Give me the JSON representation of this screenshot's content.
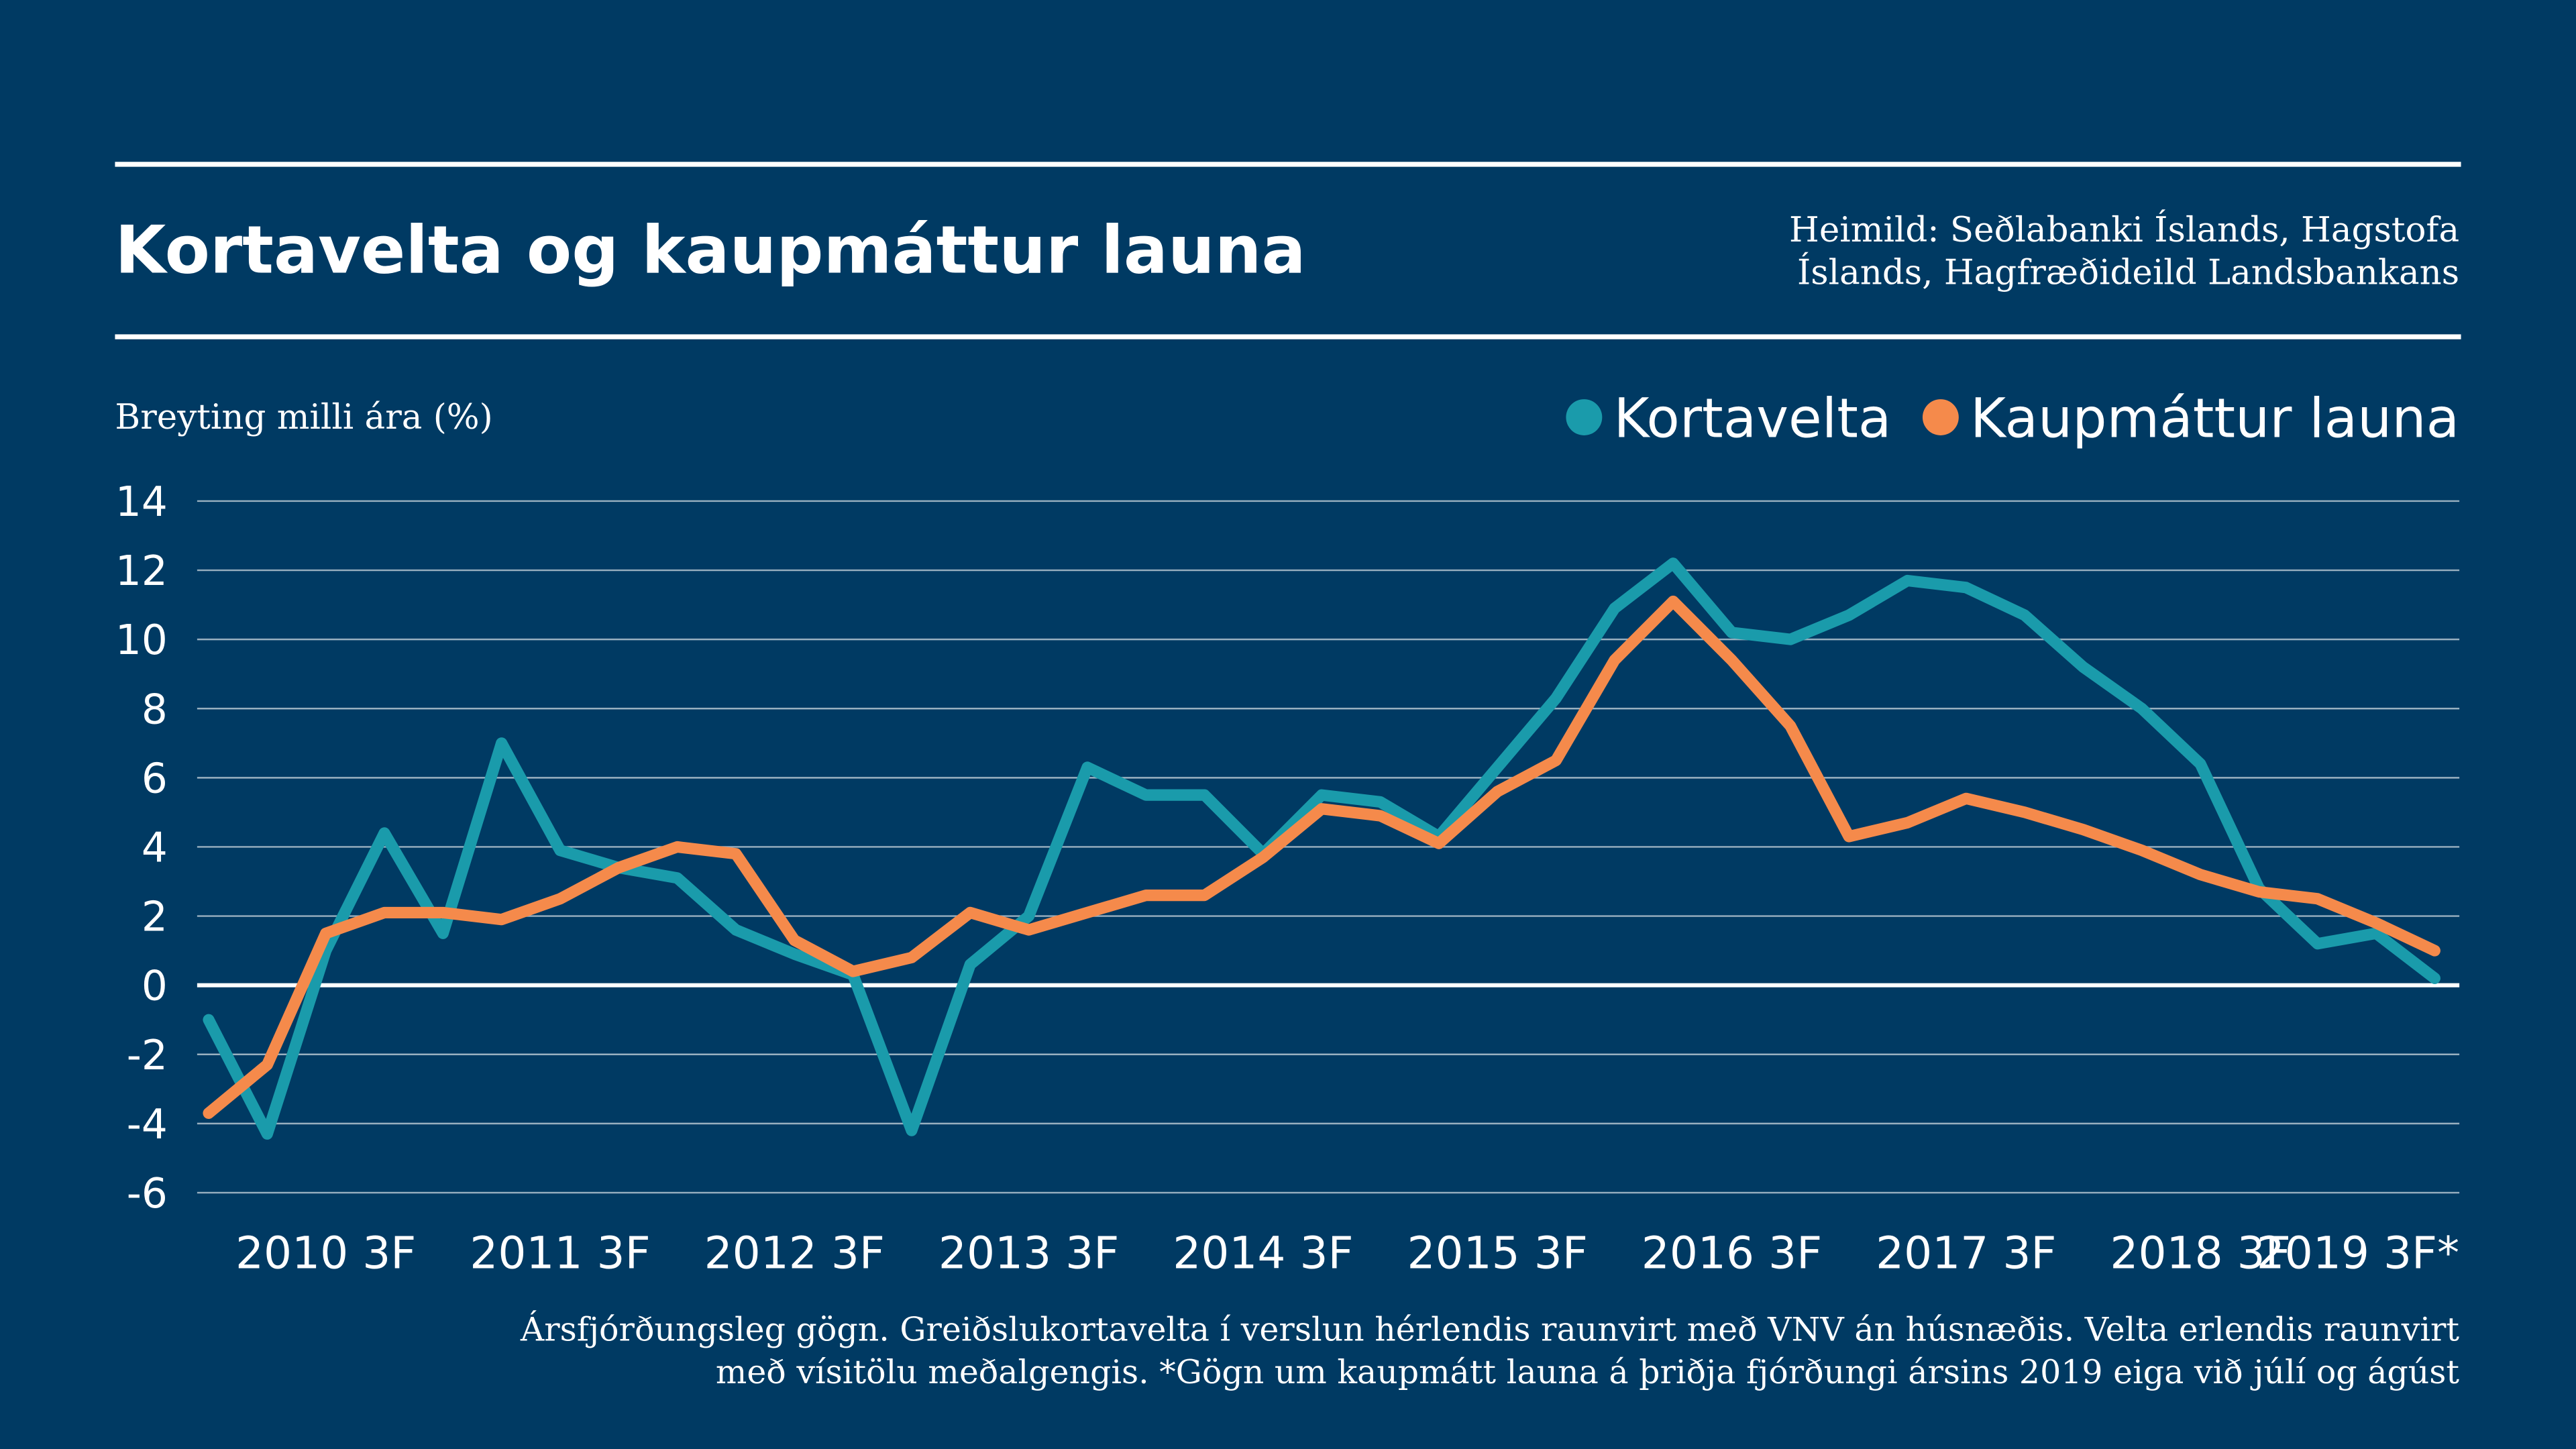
{
  "chart_data": {
    "type": "line",
    "title": "Kortavelta og kaupmáttur launa",
    "source": [
      "Heimild: Seðlabanki Íslands, Hagstofa",
      "Íslands, Hagfræðideild Landsbankans"
    ],
    "ylabel": "Breyting milli ára (%)",
    "footnote": [
      "Ársfjórðungsleg gögn. Greiðslukortavelta í verslun hérlendis raunvirt með VNV án húsnæðis. Velta erlendis raunvirt",
      "með vísitölu meðalgengis. *Gögn um kaupmátt launa á þriðja fjórðungi ársins 2019 eiga við júlí og ágúst"
    ],
    "categories": [
      null,
      null,
      "2010 3F",
      null,
      null,
      null,
      "2011 3F",
      null,
      null,
      null,
      "2012 3F",
      null,
      null,
      null,
      "2013 3F",
      null,
      null,
      null,
      "2014 3F",
      null,
      null,
      null,
      "2015 3F",
      null,
      null,
      null,
      "2016 3F",
      null,
      null,
      null,
      "2017 3F",
      null,
      null,
      null,
      "2018 3F",
      null,
      null,
      null,
      "2019 3F*"
    ],
    "series": [
      {
        "name": "Kortavelta",
        "color": "#1a9bab",
        "values": [
          -1,
          -4.3,
          1,
          4.4,
          1.5,
          7,
          3.9,
          3.4,
          3.1,
          1.6,
          0.9,
          0.3,
          -4.2,
          0.6,
          2,
          6.3,
          5.5,
          5.5,
          3.8,
          5.5,
          5.3,
          4.3,
          6.3,
          8.3,
          10.9,
          12.2,
          10.2,
          10,
          10.7,
          11.7,
          11.5,
          10.7,
          9.2,
          8,
          6.4,
          2.8,
          1.2,
          1.5,
          0.2
        ]
      },
      {
        "name": "Kaupmáttur launa",
        "color": "#f58a4b",
        "values": [
          -3.7,
          -2.3,
          1.5,
          2.1,
          2.1,
          1.9,
          2.5,
          3.4,
          4,
          3.8,
          1.3,
          0.4,
          0.8,
          2.1,
          1.6,
          2.1,
          2.6,
          2.6,
          3.7,
          5.1,
          4.9,
          4.1,
          5.6,
          6.5,
          9.4,
          11.1,
          9.4,
          7.5,
          4.3,
          4.7,
          5.4,
          5,
          4.5,
          3.9,
          3.2,
          2.7,
          2.5,
          1.8,
          1.0
        ]
      }
    ],
    "ylim": [
      -6,
      14
    ],
    "yticks": [
      -6,
      -4,
      -2,
      0,
      2,
      4,
      6,
      8,
      10,
      12,
      14
    ],
    "grid": true,
    "legend": "top-right"
  }
}
